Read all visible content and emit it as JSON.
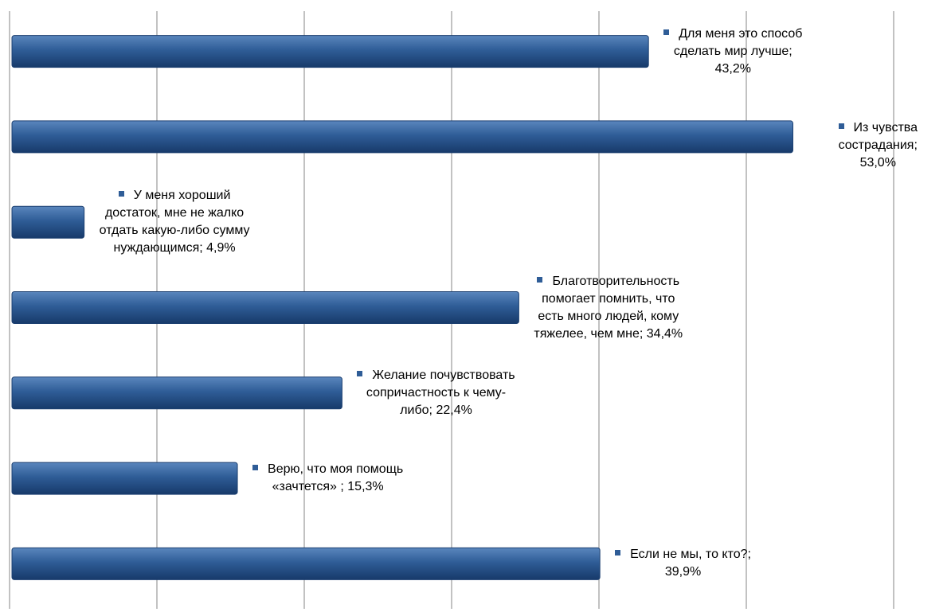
{
  "chart_data": {
    "type": "bar",
    "orientation": "horizontal",
    "title": "",
    "xlabel": "",
    "ylabel": "",
    "xlim": [
      0,
      60
    ],
    "grid": true,
    "bar_color": "#2f5d97",
    "categories": [
      "Для меня это способ сделать мир лучше",
      "Из чувства сострадания",
      "У меня хороший достаток, мне не жалко отдать какую-либо сумму нуждающимся",
      "Благотворительность помогает помнить, что есть много людей, кому тяжелее, чем мне",
      "Желание почувствовать сопричастность к чему-либо",
      "Верю, что моя помощь «зачтется»",
      "Если не мы, то кто?"
    ],
    "values": [
      43.2,
      53.0,
      4.9,
      34.4,
      22.4,
      15.3,
      39.9
    ],
    "labels": [
      "Для меня это способ\nсделать мир лучше;\n43,2%",
      "Из чувства сострадания;\n53,0%",
      "У меня хороший\nдостаток, мне не жалко\nотдать какую-либо сумму\nнуждающимся; 4,9%",
      "Благотворительность\nпомогает помнить, что\nесть много людей, кому\nтяжелее, чем мне; 34,4%",
      "Желание почувствовать\nсопричастность к чему-\nлибо; 22,4%",
      "Верю, что моя помощь\n«зачтется» ; 15,3%",
      "Если не мы, то кто?;\n39,9%"
    ]
  }
}
